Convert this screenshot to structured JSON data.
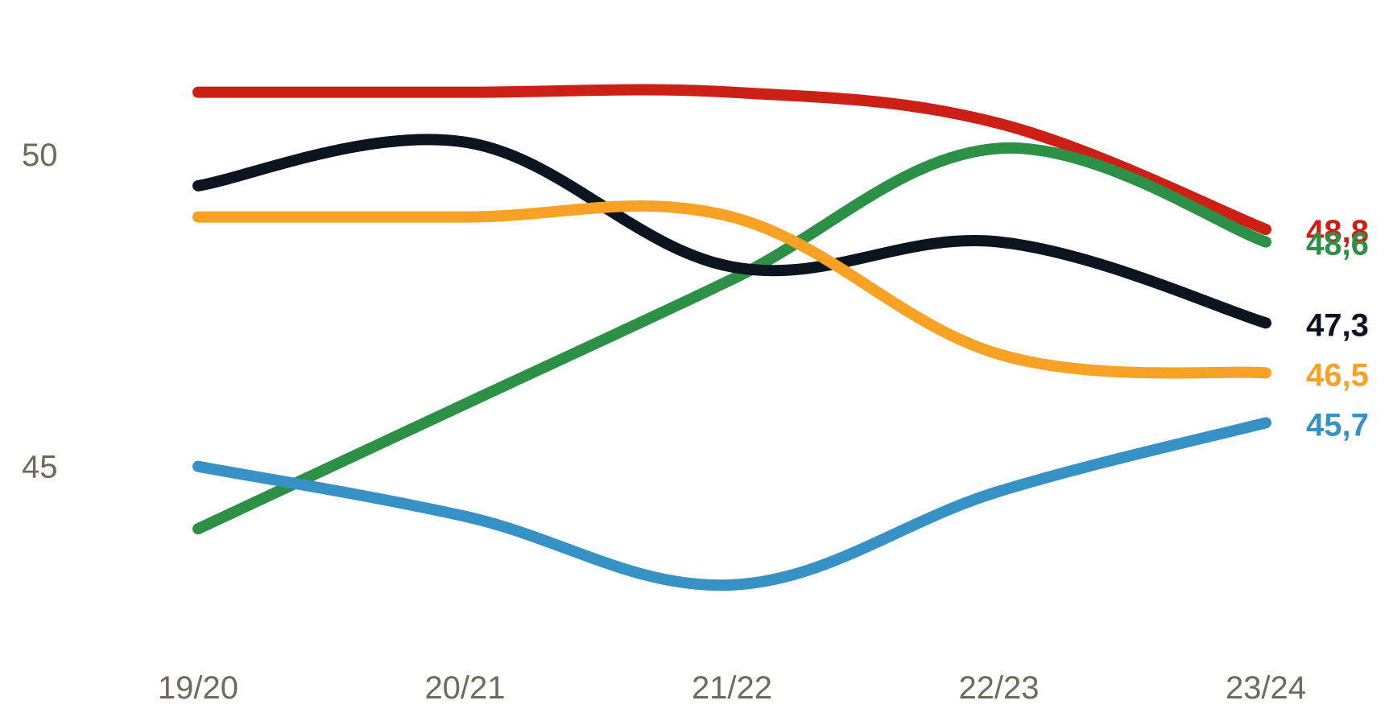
{
  "chart_data": {
    "type": "line",
    "title": "",
    "xlabel": "",
    "ylabel": "",
    "x": [
      "19/20",
      "20/21",
      "21/22",
      "22/23",
      "23/24"
    ],
    "y_ticks": [
      "45",
      "50"
    ],
    "y_tick_values": [
      45,
      50
    ],
    "ylim": [
      42.35,
      51.95
    ],
    "grid": false,
    "legend": "none",
    "series": [
      {
        "key": "red",
        "color": "#cc1f16",
        "values": [
          51.0,
          51.0,
          51.0,
          50.5,
          48.8
        ],
        "end_label": "48,8"
      },
      {
        "key": "green",
        "color": "#2c9147",
        "values": [
          44.0,
          46.0,
          48.0,
          50.1,
          48.6
        ],
        "end_label": "48,6"
      },
      {
        "key": "black",
        "color": "#0b1520",
        "values": [
          49.5,
          50.2,
          48.2,
          48.6,
          47.3
        ],
        "end_label": "47,3"
      },
      {
        "key": "orange",
        "color": "#f7a125",
        "values": [
          49.0,
          49.0,
          49.0,
          46.8,
          46.5
        ],
        "end_label": "46,5"
      },
      {
        "key": "blue",
        "color": "#3691c5",
        "values": [
          45.0,
          44.2,
          43.1,
          44.6,
          45.7
        ],
        "end_label": "45,7"
      }
    ]
  }
}
